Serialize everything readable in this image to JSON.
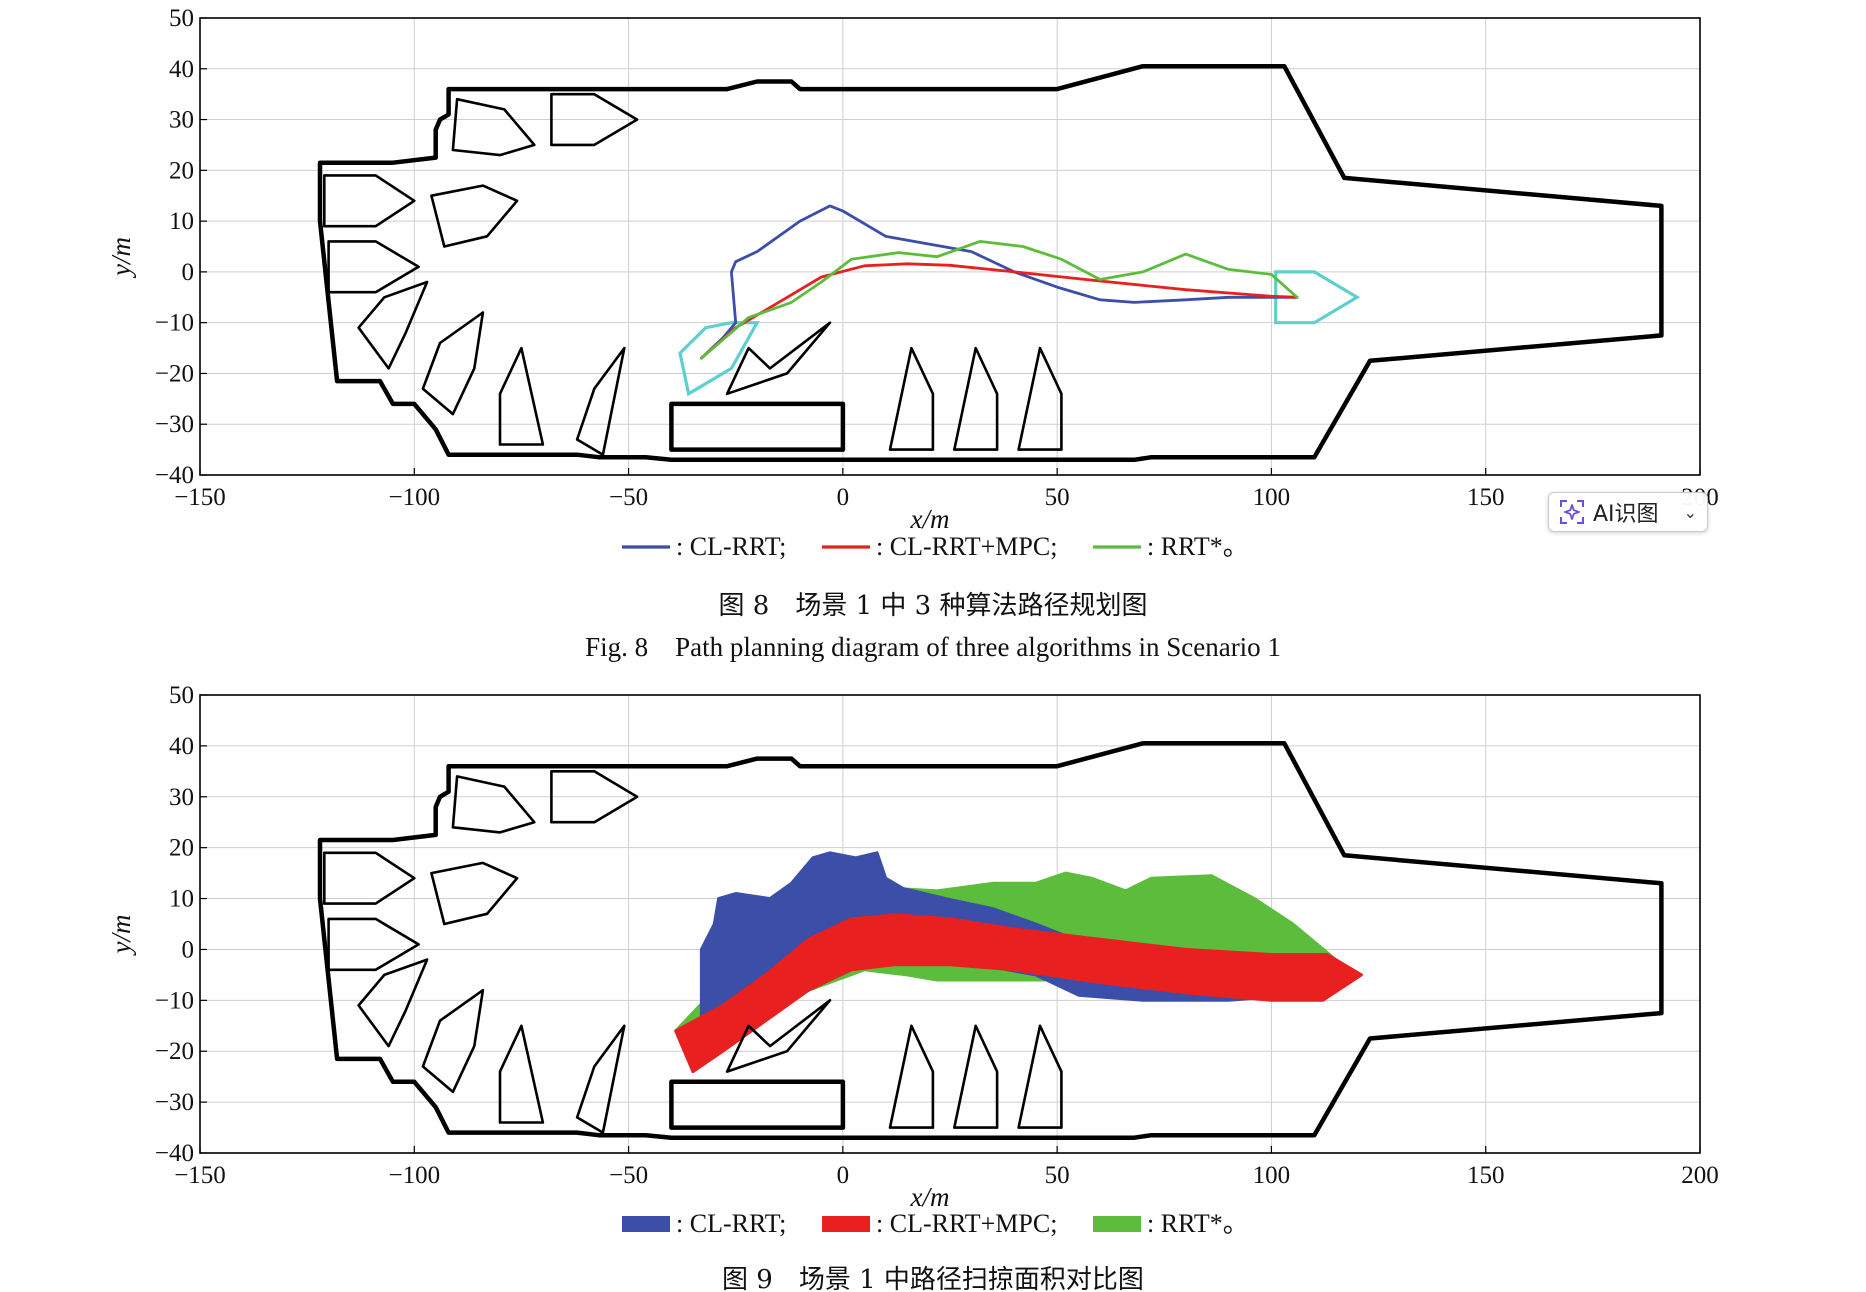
{
  "chart_data": [
    {
      "type": "line",
      "xlabel": "x/m",
      "ylabel": "y/m",
      "xlim": [
        -150,
        200
      ],
      "ylim": [
        -40,
        50
      ],
      "xticks": [
        -150,
        -100,
        -50,
        0,
        50,
        100,
        150,
        200
      ],
      "yticks": [
        -40,
        -30,
        -20,
        -10,
        0,
        10,
        20,
        30,
        40,
        50
      ],
      "grid": true,
      "legend_position": "bottom-center",
      "series": [
        {
          "name": ": CL-RRT;",
          "color": "#3b4ea8",
          "x": [
            -33,
            -28,
            -25,
            -26,
            -25,
            -20,
            -10,
            -3,
            0,
            10,
            20,
            30,
            40,
            50,
            60,
            68,
            80,
            90,
            100,
            106
          ],
          "y": [
            -17,
            -13,
            -10,
            0,
            2,
            4,
            10,
            13,
            12,
            7,
            5.5,
            4,
            0,
            -3,
            -5.5,
            -6,
            -5.5,
            -5,
            -5,
            -5
          ]
        },
        {
          "name": ": CL-RRT+MPC;",
          "color": "#e82020",
          "x": [
            -33,
            -25,
            -15,
            -5,
            5,
            15,
            25,
            40,
            60,
            80,
            100,
            106
          ],
          "y": [
            -17,
            -11,
            -6,
            -1,
            1.2,
            1.6,
            1.3,
            0,
            -1.8,
            -3.5,
            -4.8,
            -5
          ]
        },
        {
          "name": ": RRT*。",
          "color": "#5cbd3c",
          "x": [
            -33,
            -22,
            -12,
            -5,
            2,
            13,
            22,
            32,
            42,
            51,
            60,
            70,
            80,
            90,
            100,
            106
          ],
          "y": [
            -17,
            -9,
            -6,
            -2,
            2.5,
            3.8,
            3,
            6,
            5,
            2.5,
            -1.5,
            0,
            3.5,
            0.5,
            -0.5,
            -5
          ]
        }
      ],
      "legend": [
        {
          "label": ": CL-RRT;",
          "color": "#3b4ea8"
        },
        {
          "label": ": CL-RRT+MPC;",
          "color": "#e82020"
        },
        {
          "label": ": RRT*。",
          "color": "#5cbd3c"
        }
      ],
      "obstacles": {
        "boundary": [
          [
            -92,
            36
          ],
          [
            -27,
            36
          ],
          [
            -20,
            37.5
          ],
          [
            -12,
            37.5
          ],
          [
            -10,
            36
          ],
          [
            -5,
            36
          ],
          [
            50,
            36
          ],
          [
            70,
            40.5
          ],
          [
            103,
            40.5
          ],
          [
            117,
            18.5
          ],
          [
            191,
            13
          ],
          [
            191,
            -12.5
          ],
          [
            123,
            -17.5
          ],
          [
            110,
            -36.5
          ],
          [
            72,
            -36.5
          ],
          [
            68,
            -37
          ],
          [
            -40,
            -37
          ],
          [
            -46,
            -36.5
          ],
          [
            -57,
            -36.5
          ],
          [
            -62,
            -36
          ],
          [
            -92,
            -36
          ],
          [
            -95,
            -31
          ],
          [
            -100,
            -26
          ],
          [
            -105,
            -26
          ],
          [
            -108,
            -21.5
          ],
          [
            -118,
            -21.5
          ],
          [
            -122,
            10
          ],
          [
            -122,
            21.5
          ],
          [
            -105,
            21.5
          ],
          [
            -95,
            22.5
          ],
          [
            -95,
            28
          ],
          [
            -94,
            30
          ],
          [
            -92,
            31
          ]
        ],
        "shapes": [
          [
            [
              -90,
              34
            ],
            [
              -79,
              32
            ],
            [
              -72,
              25
            ],
            [
              -80,
              23
            ],
            [
              -91,
              24
            ]
          ],
          [
            [
              -68,
              35
            ],
            [
              -58,
              35
            ],
            [
              -48,
              30
            ],
            [
              -58,
              25
            ],
            [
              -68,
              25
            ]
          ],
          [
            [
              -121,
              19
            ],
            [
              -109,
              19
            ],
            [
              -100,
              14
            ],
            [
              -109,
              9
            ],
            [
              -121,
              9
            ]
          ],
          [
            [
              -96,
              15
            ],
            [
              -84,
              17
            ],
            [
              -76,
              14
            ],
            [
              -83,
              7
            ],
            [
              -93,
              5
            ]
          ],
          [
            [
              -120,
              6
            ],
            [
              -109,
              6
            ],
            [
              -99,
              1
            ],
            [
              -109,
              -4
            ],
            [
              -120,
              -4
            ]
          ],
          [
            [
              -97,
              -2
            ],
            [
              -102,
              -12
            ],
            [
              -106,
              -19
            ],
            [
              -113,
              -11
            ],
            [
              -107,
              -5
            ]
          ],
          [
            [
              -84,
              -8
            ],
            [
              -86,
              -19
            ],
            [
              -91,
              -28
            ],
            [
              -98,
              -23
            ],
            [
              -94,
              -14
            ]
          ],
          [
            [
              -70,
              -34
            ],
            [
              -75,
              -15
            ],
            [
              -80,
              -24
            ],
            [
              -80,
              -34
            ]
          ],
          [
            [
              -56,
              -36
            ],
            [
              -51,
              -15
            ],
            [
              -58,
              -23
            ],
            [
              -62,
              -33
            ]
          ],
          [
            [
              -40,
              -26
            ],
            [
              0,
              -26
            ],
            [
              0,
              -35
            ],
            [
              -40,
              -35
            ]
          ],
          [
            [
              -17,
              -19
            ],
            [
              -3,
              -10
            ],
            [
              -13,
              -20
            ],
            [
              -27,
              -24
            ],
            [
              -22,
              -15
            ]
          ],
          [
            [
              11,
              -35
            ],
            [
              16,
              -15
            ],
            [
              21,
              -24
            ],
            [
              21,
              -35
            ]
          ],
          [
            [
              26,
              -35
            ],
            [
              31,
              -15
            ],
            [
              36,
              -24
            ],
            [
              36,
              -35
            ]
          ],
          [
            [
              41,
              -35
            ],
            [
              46,
              -15
            ],
            [
              51,
              -24
            ],
            [
              51,
              -35
            ]
          ]
        ],
        "start_region": [
          [
            -38,
            -16
          ],
          [
            -32,
            -11
          ],
          [
            -26,
            -10
          ],
          [
            -20,
            -10
          ],
          [
            -26,
            -19
          ],
          [
            -36,
            -24
          ]
        ],
        "goal_region": [
          [
            101,
            0
          ],
          [
            110,
            0
          ],
          [
            120,
            -5
          ],
          [
            110,
            -10
          ],
          [
            101,
            -10
          ]
        ]
      }
    },
    {
      "type": "area",
      "xlabel": "x/m",
      "ylabel": "y/m",
      "xlim": [
        -150,
        200
      ],
      "ylim": [
        -40,
        50
      ],
      "xticks": [
        -150,
        -100,
        -50,
        0,
        50,
        100,
        150,
        200
      ],
      "yticks": [
        -40,
        -30,
        -20,
        -10,
        0,
        10,
        20,
        30,
        40,
        50
      ],
      "grid": true,
      "legend_position": "bottom-center",
      "series": [
        {
          "name": ": RRT*。",
          "color": "#5cbd3c",
          "polygon": [
            [
              -39,
              -16
            ],
            [
              -30,
              -8
            ],
            [
              -15,
              2
            ],
            [
              -5,
              8
            ],
            [
              5,
              11
            ],
            [
              12,
              12
            ],
            [
              22,
              11.5
            ],
            [
              35,
              13
            ],
            [
              45,
              13
            ],
            [
              52,
              15
            ],
            [
              58,
              14
            ],
            [
              66,
              11.5
            ],
            [
              72,
              14
            ],
            [
              86,
              14.5
            ],
            [
              96,
              10
            ],
            [
              105,
              5
            ],
            [
              115,
              -2
            ],
            [
              121,
              -5
            ],
            [
              108,
              -8
            ],
            [
              95,
              -9
            ],
            [
              80,
              -7
            ],
            [
              65,
              -7
            ],
            [
              50,
              -6
            ],
            [
              35,
              -6
            ],
            [
              22,
              -6
            ],
            [
              15,
              -5
            ],
            [
              5,
              -4
            ],
            [
              -8,
              -8
            ],
            [
              -22,
              -14
            ],
            [
              -35,
              -21
            ]
          ]
        },
        {
          "name": ": CL-RRT;",
          "color": "#3b4ea8",
          "polygon": [
            [
              -33,
              -18
            ],
            [
              -33,
              -12
            ],
            [
              -33,
              0
            ],
            [
              -30,
              5
            ],
            [
              -29,
              10
            ],
            [
              -25,
              11
            ],
            [
              -17,
              10
            ],
            [
              -12,
              13
            ],
            [
              -7,
              18
            ],
            [
              -3,
              19
            ],
            [
              3,
              18
            ],
            [
              8,
              19
            ],
            [
              10,
              14
            ],
            [
              14,
              12
            ],
            [
              24,
              10
            ],
            [
              35,
              8
            ],
            [
              45,
              5
            ],
            [
              60,
              0
            ],
            [
              75,
              -2
            ],
            [
              90,
              -3
            ],
            [
              105,
              -4
            ],
            [
              115,
              -5
            ],
            [
              105,
              -9
            ],
            [
              90,
              -10
            ],
            [
              70,
              -10
            ],
            [
              55,
              -9
            ],
            [
              45,
              -5
            ],
            [
              32,
              -3
            ],
            [
              20,
              -2
            ],
            [
              10,
              -2
            ],
            [
              2,
              -2
            ],
            [
              -5,
              -6
            ],
            [
              -10,
              -8
            ],
            [
              -18,
              -11
            ],
            [
              -25,
              -14
            ],
            [
              -30,
              -17
            ]
          ]
        },
        {
          "name": ": CL-RRT+MPC;",
          "color": "#e82020",
          "polygon": [
            [
              -39,
              -16
            ],
            [
              -28,
              -11
            ],
            [
              -18,
              -5
            ],
            [
              -8,
              2
            ],
            [
              2,
              6
            ],
            [
              12,
              6.8
            ],
            [
              25,
              6
            ],
            [
              40,
              4
            ],
            [
              60,
              2
            ],
            [
              80,
              0
            ],
            [
              100,
              -1
            ],
            [
              113,
              -1
            ],
            [
              121,
              -5
            ],
            [
              112,
              -10
            ],
            [
              100,
              -10
            ],
            [
              80,
              -8.5
            ],
            [
              60,
              -6.5
            ],
            [
              40,
              -4
            ],
            [
              25,
              -3
            ],
            [
              12,
              -3
            ],
            [
              2,
              -4
            ],
            [
              -8,
              -8
            ],
            [
              -18,
              -14
            ],
            [
              -28,
              -20
            ],
            [
              -35,
              -24
            ]
          ]
        }
      ],
      "legend": [
        {
          "label": ": CL-RRT;",
          "color": "#3b4ea8"
        },
        {
          "label": ": CL-RRT+MPC;",
          "color": "#e82020"
        },
        {
          "label": ": RRT*。",
          "color": "#5cbd3c"
        }
      ]
    }
  ],
  "captions": {
    "fig8_cn": "图 8　场景 1 中 3 种算法路径规划图",
    "fig8_en": "Fig. 8　Path planning diagram of three algorithms in Scenario 1",
    "fig9_cn": "图 9　场景 1 中路径扫掠面积对比图"
  },
  "overlay": {
    "ai_button_label": "AI识图",
    "ai_icon": "sparkle-scan-icon",
    "chevron": "chevron-down-icon"
  }
}
